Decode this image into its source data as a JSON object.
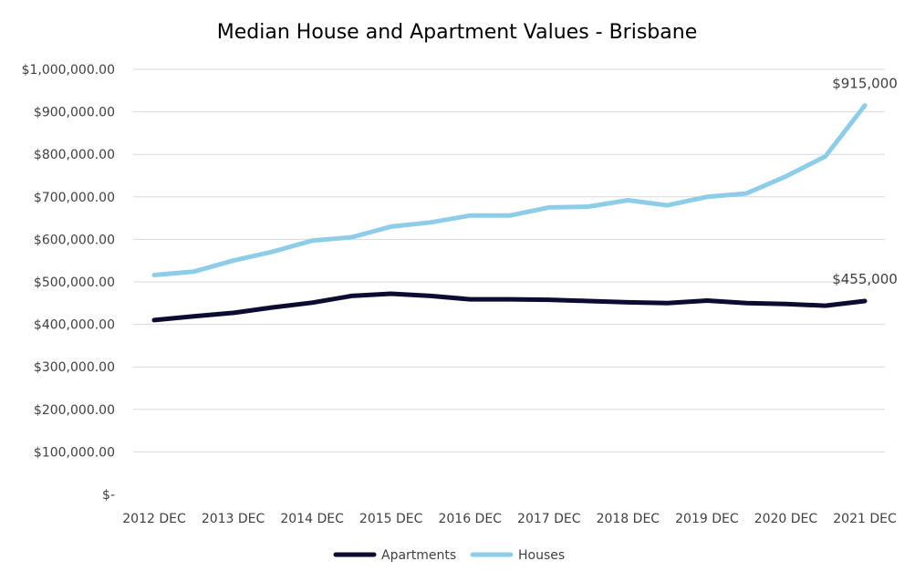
{
  "chart_data": {
    "type": "line",
    "title": "Median House and Apartment Values - Brisbane",
    "xlabel": "",
    "ylabel": "",
    "x": [
      "2012 DEC",
      "",
      "2013 DEC",
      "",
      "2014 DEC",
      "",
      "2015 DEC",
      "",
      "2016 DEC",
      "",
      "2017 DEC",
      "",
      "2018 DEC",
      "",
      "2019 DEC",
      "",
      "2020 DEC",
      "",
      "2021 DEC"
    ],
    "x_tick_labels": [
      "2012 DEC",
      "2013 DEC",
      "2014 DEC",
      "2015 DEC",
      "2016 DEC",
      "2017 DEC",
      "2018 DEC",
      "2019 DEC",
      "2020 DEC",
      "2021 DEC"
    ],
    "y_tick_labels": [
      "$-",
      "$100,000.00",
      "$200,000.00",
      "$300,000.00",
      "$400,000.00",
      "$500,000.00",
      "$600,000.00",
      "$700,000.00",
      "$800,000.00",
      "$900,000.00",
      "$1,000,000.00"
    ],
    "ylim": [
      0,
      1000000
    ],
    "grid": true,
    "legend_position": "bottom",
    "series": [
      {
        "name": "Apartments",
        "color": "#0c0c33",
        "values": [
          410000,
          419000,
          427000,
          440000,
          451000,
          467000,
          472000,
          467000,
          459000,
          459000,
          458000,
          455000,
          452000,
          450000,
          456000,
          450000,
          448000,
          444000,
          455000
        ],
        "end_label": "$455,000"
      },
      {
        "name": "Houses",
        "color": "#8ecde8",
        "values": [
          516000,
          524000,
          550000,
          571000,
          597000,
          605000,
          630000,
          640000,
          656000,
          656000,
          675000,
          677000,
          692000,
          680000,
          700000,
          708000,
          748000,
          795000,
          915000
        ],
        "end_label": "$915,000"
      }
    ]
  }
}
